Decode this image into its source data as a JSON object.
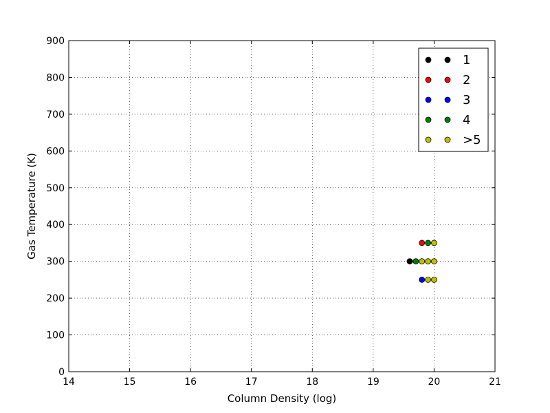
{
  "chart_data": {
    "type": "scatter",
    "title": "",
    "xlabel": "Column Density (log)",
    "ylabel": "Gas Temperature (K)",
    "xlim": [
      14,
      21
    ],
    "ylim": [
      0,
      900
    ],
    "xticks": [
      "14",
      "15",
      "16",
      "17",
      "18",
      "19",
      "20",
      "21"
    ],
    "yticks": [
      "0",
      "100",
      "200",
      "300",
      "400",
      "500",
      "600",
      "700",
      "800",
      "900"
    ],
    "grid": true,
    "legend_position": "top-right",
    "series": [
      {
        "name": "1",
        "color": "#000000",
        "points": [
          [
            19.6,
            300
          ]
        ]
      },
      {
        "name": "2",
        "color": "#ff0000",
        "points": [
          [
            19.8,
            350
          ]
        ]
      },
      {
        "name": "3",
        "color": "#0000ff",
        "points": [
          [
            19.8,
            250
          ]
        ]
      },
      {
        "name": "4",
        "color": "#008000",
        "points": [
          [
            19.7,
            300
          ],
          [
            19.9,
            350
          ]
        ]
      },
      {
        "name": ">5",
        "color": "#bfbf00",
        "points": [
          [
            19.8,
            300
          ],
          [
            19.9,
            300
          ],
          [
            20.0,
            300
          ],
          [
            20.0,
            350
          ],
          [
            19.9,
            250
          ],
          [
            20.0,
            250
          ]
        ]
      }
    ]
  }
}
